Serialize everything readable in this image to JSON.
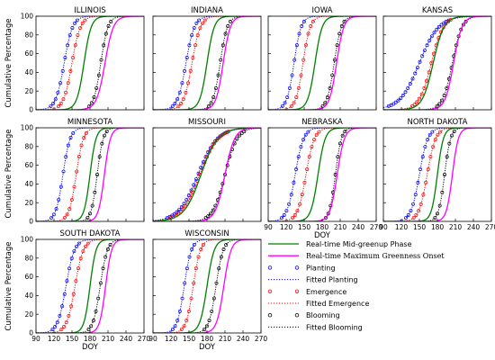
{
  "chart_data": {
    "type": "line",
    "xlabel": "DOY",
    "ylabel": "Cumulative Percentage",
    "xlim": [
      90,
      270
    ],
    "ylim": [
      0,
      100
    ],
    "xticks": [
      90,
      120,
      150,
      180,
      210,
      240,
      270
    ],
    "yticks": [
      0,
      20,
      40,
      60,
      80,
      100
    ],
    "legend": {
      "placement": "lower-right",
      "entries": [
        {
          "key": "mid",
          "label": "Real-time Mid-greenup Phase",
          "style": "solid",
          "color": "#008000"
        },
        {
          "key": "max",
          "label": "Real-time Maximum Greenness Onset",
          "style": "solid",
          "color": "#ff00ff"
        },
        {
          "key": "plant_obs",
          "label": "Planting",
          "style": "circle",
          "color": "#0000ff"
        },
        {
          "key": "plant_fit",
          "label": "Fitted Planting",
          "style": "dotted",
          "color": "#0000ff"
        },
        {
          "key": "emer_obs",
          "label": "Emergence",
          "style": "circle",
          "color": "#ff0000"
        },
        {
          "key": "emer_fit",
          "label": "Fitted Emergence",
          "style": "dotted",
          "color": "#ff0000"
        },
        {
          "key": "bloom_obs",
          "label": "Blooming",
          "style": "circle",
          "color": "#000000"
        },
        {
          "key": "bloom_fit",
          "label": "Fitted Blooming",
          "style": "dotted",
          "color": "#000000"
        }
      ]
    },
    "panels": [
      {
        "title": "ILLINOIS",
        "mid": [
          170,
          6
        ],
        "max": [
          205,
          7
        ],
        "planting": [
          137,
          7
        ],
        "emergence": [
          150,
          7
        ],
        "blooming": [
          198,
          6
        ]
      },
      {
        "title": "INDIANA",
        "mid": [
          180,
          6
        ],
        "max": [
          207,
          6
        ],
        "planting": [
          145,
          7
        ],
        "emergence": [
          155,
          7
        ],
        "blooming": [
          202,
          6
        ]
      },
      {
        "title": "IOWA",
        "mid": [
          168,
          6
        ],
        "max": [
          204,
          6
        ],
        "planting": [
          133,
          6
        ],
        "emergence": [
          148,
          6
        ],
        "blooming": [
          200,
          6
        ]
      },
      {
        "title": "KANSAS",
        "mid": [
          173,
          9
        ],
        "max": [
          207,
          7
        ],
        "planting": [
          150,
          16
        ],
        "emergence": [
          170,
          10
        ],
        "blooming": [
          205,
          8
        ]
      },
      {
        "title": "MINNESOTA",
        "mid": [
          180,
          5
        ],
        "max": [
          204,
          5
        ],
        "planting": [
          135,
          6
        ],
        "emergence": [
          157,
          6
        ],
        "blooming": [
          192,
          5
        ]
      },
      {
        "title": "MISSOURI",
        "mid": [
          170,
          14
        ],
        "max": [
          210,
          8
        ],
        "planting": [
          165,
          16
        ],
        "emergence": [
          168,
          15
        ],
        "blooming": [
          210,
          10
        ]
      },
      {
        "title": "NEBRASKA",
        "mid": [
          173,
          6
        ],
        "max": [
          205,
          6
        ],
        "planting": [
          135,
          7
        ],
        "emergence": [
          153,
          7
        ],
        "blooming": [
          202,
          5
        ]
      },
      {
        "title": "NORTH DAKOTA",
        "mid": [
          180,
          5
        ],
        "max": [
          205,
          5
        ],
        "planting": [
          150,
          7
        ],
        "emergence": [
          163,
          7
        ],
        "blooming": [
          192,
          5
        ]
      },
      {
        "title": "SOUTH DAKOTA",
        "mid": [
          180,
          5
        ],
        "max": [
          206,
          5
        ],
        "planting": [
          140,
          7
        ],
        "emergence": [
          155,
          7
        ],
        "blooming": [
          197,
          6
        ]
      },
      {
        "title": "WISCONSIN",
        "mid": [
          180,
          6
        ],
        "max": [
          208,
          6
        ],
        "planting": [
          142,
          6
        ],
        "emergence": [
          157,
          6
        ],
        "blooming": [
          195,
          6
        ]
      }
    ]
  }
}
